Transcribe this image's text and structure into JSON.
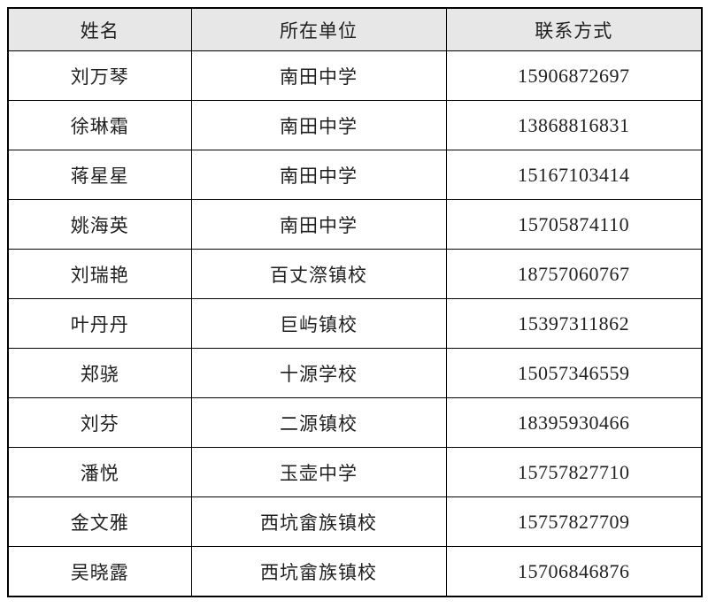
{
  "table": {
    "headers": [
      "姓名",
      "所在单位",
      "联系方式"
    ],
    "rows": [
      {
        "name": "刘万琴",
        "unit": "南田中学",
        "phone": "15906872697"
      },
      {
        "name": "徐琳霜",
        "unit": "南田中学",
        "phone": "13868816831"
      },
      {
        "name": "蒋星星",
        "unit": "南田中学",
        "phone": "15167103414"
      },
      {
        "name": "姚海英",
        "unit": "南田中学",
        "phone": "15705874110"
      },
      {
        "name": "刘瑞艳",
        "unit": "百丈漈镇校",
        "phone": "18757060767"
      },
      {
        "name": "叶丹丹",
        "unit": "巨屿镇校",
        "phone": "15397311862"
      },
      {
        "name": "郑骁",
        "unit": "十源学校",
        "phone": "15057346559"
      },
      {
        "name": "刘芬",
        "unit": "二源镇校",
        "phone": "18395930466"
      },
      {
        "name": "潘悦",
        "unit": "玉壶中学",
        "phone": "15757827710"
      },
      {
        "name": "金文雅",
        "unit": "西坑畲族镇校",
        "phone": "15757827709"
      },
      {
        "name": "吴晓露",
        "unit": "西坑畲族镇校",
        "phone": "15706846876"
      }
    ],
    "colors": {
      "header_background": "#e7e7e7",
      "border": "#000000",
      "text": "#1f1f1f",
      "row_background": "#ffffff"
    }
  }
}
